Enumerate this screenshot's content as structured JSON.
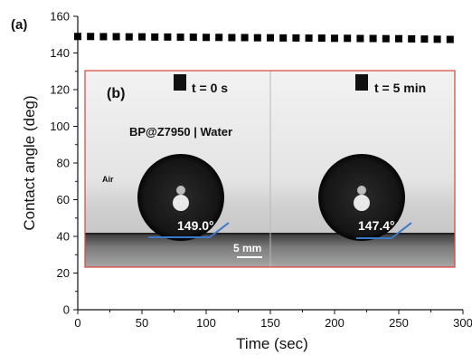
{
  "chart_data": {
    "type": "scatter",
    "panel_label": "(a)",
    "xlabel": "Time (sec)",
    "ylabel": "Contact angle (deg)",
    "xlim": [
      0,
      300
    ],
    "ylim": [
      0,
      160
    ],
    "x_ticks": [
      "0",
      "50",
      "100",
      "150",
      "200",
      "250",
      "300"
    ],
    "y_ticks": [
      "0",
      "20",
      "40",
      "60",
      "80",
      "100",
      "120",
      "140",
      "160"
    ],
    "grid": false,
    "marker": "square",
    "color": "#000000",
    "series": [
      {
        "x": [
          0,
          10,
          20,
          30,
          40,
          50,
          60,
          70,
          80,
          90,
          100,
          110,
          120,
          130,
          140,
          150,
          160,
          170,
          180,
          190,
          200,
          210,
          220,
          230,
          240,
          250,
          260,
          270,
          280,
          290
        ],
        "y": [
          149.0,
          149.0,
          148.9,
          148.9,
          148.8,
          148.8,
          148.7,
          148.7,
          148.6,
          148.6,
          148.5,
          148.5,
          148.4,
          148.4,
          148.3,
          148.3,
          148.2,
          148.2,
          148.1,
          148.1,
          148.0,
          148.0,
          147.9,
          147.9,
          147.8,
          147.8,
          147.7,
          147.6,
          147.5,
          147.4
        ]
      }
    ]
  },
  "inset": {
    "panel_label": "(b)",
    "sample_label": "BP@Z7950  | Water",
    "medium_label": "Air",
    "scale_bar_label": "5 mm",
    "border_color": "#e0403a",
    "baseline_color": "#3a78c8",
    "left": {
      "time_label": "t = 0 s",
      "angle_label": "149.0°"
    },
    "right": {
      "time_label": "t = 5 min",
      "angle_label": "147.4°"
    }
  }
}
